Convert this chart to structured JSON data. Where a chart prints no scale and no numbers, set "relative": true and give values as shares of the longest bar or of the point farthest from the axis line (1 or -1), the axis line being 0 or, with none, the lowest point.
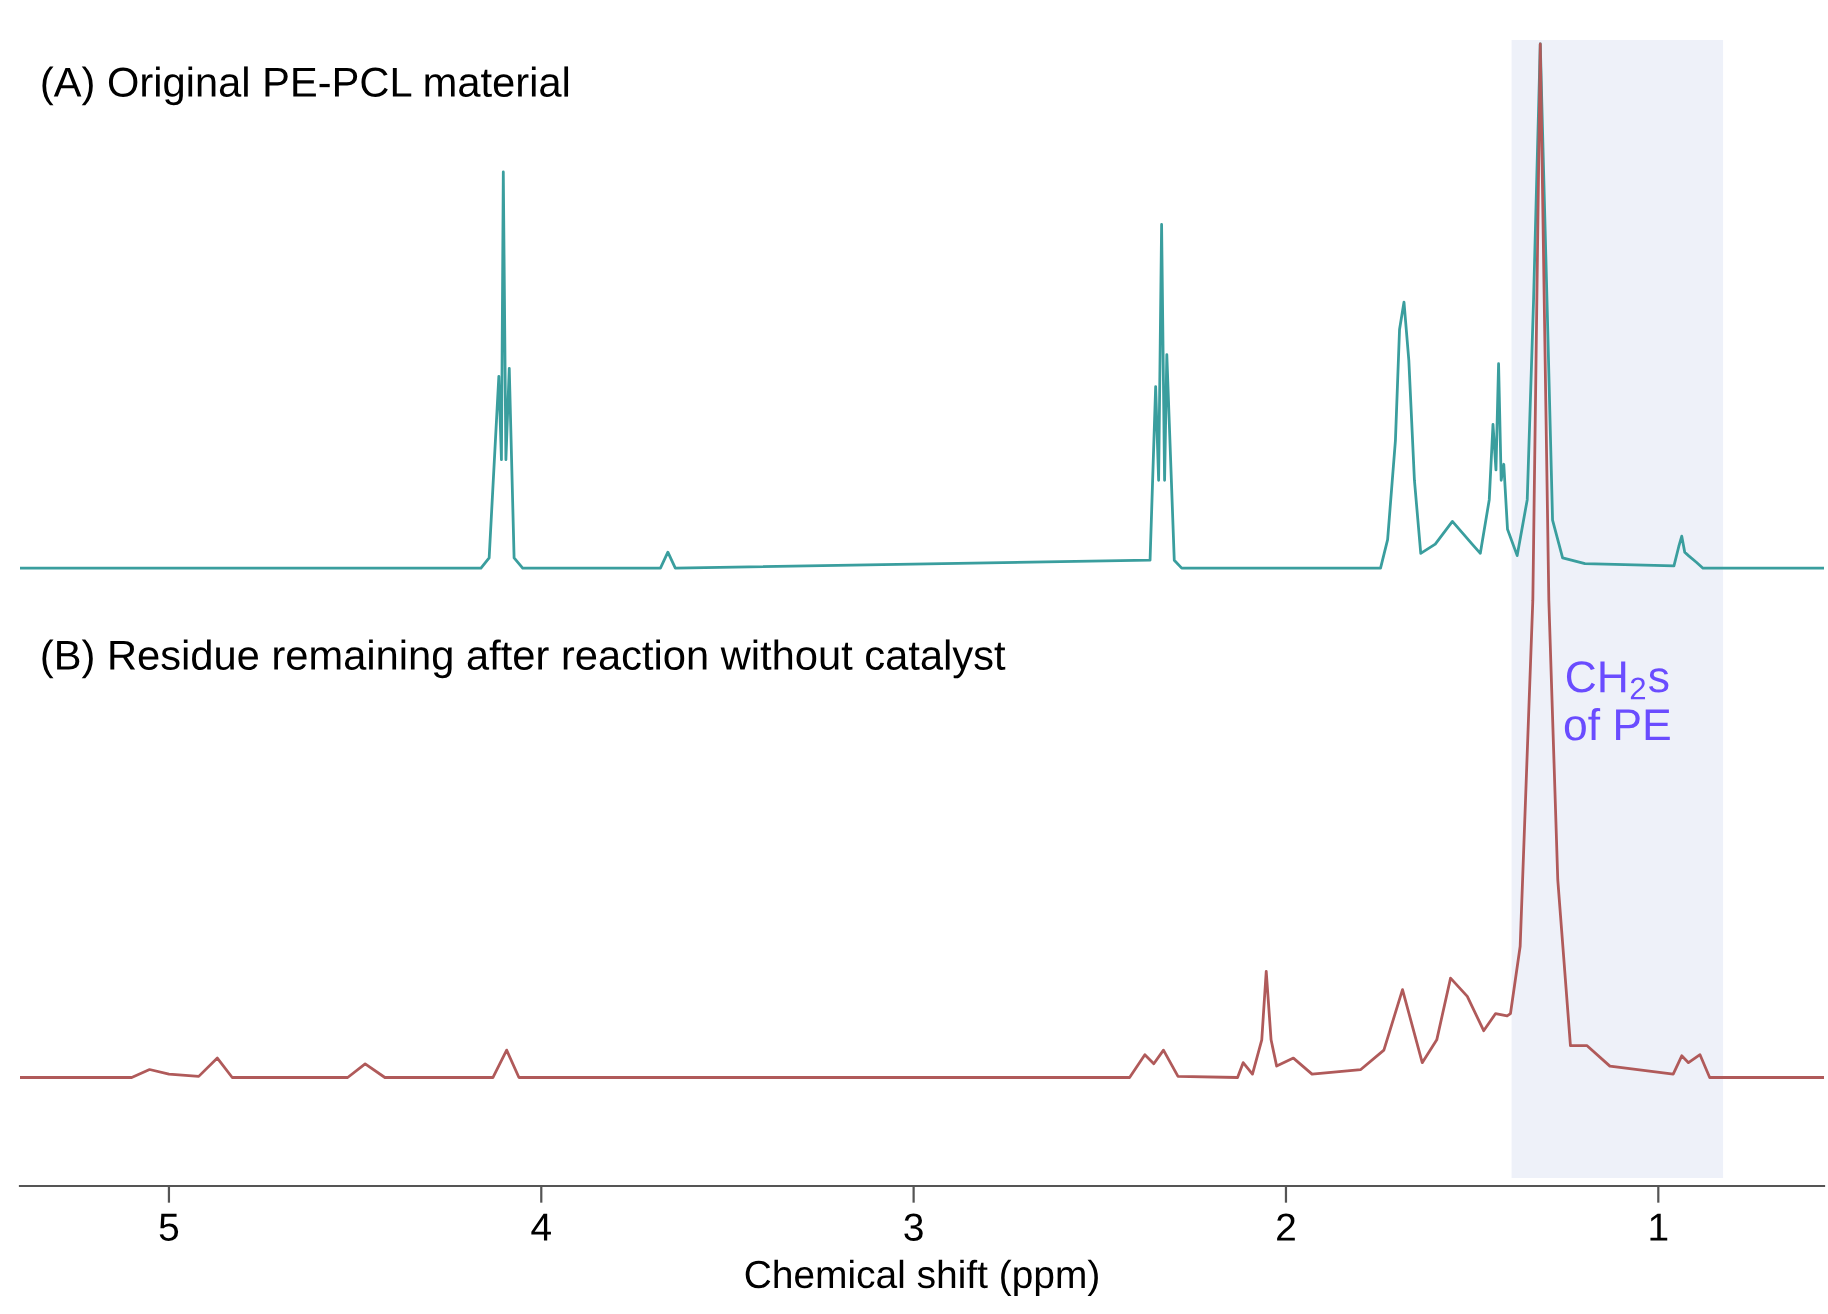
{
  "chart_data": {
    "type": "line",
    "annotations": [
      "(A) Original PE-PCL material",
      "(B) Residue remaining after reaction without catalyst"
    ],
    "xlabel": "Chemical shift (ppm)",
    "xlim": [
      5.4,
      0.555
    ],
    "xticks": [
      5,
      4,
      3,
      2,
      1
    ],
    "relative": true,
    "tick_labels": "x",
    "bands": [
      {
        "axis": "x",
        "from": 1.394,
        "to": 0.826,
        "label": "CH$_{2}$s\nof PE",
        "color": "#eef1f9"
      }
    ],
    "series": [
      {
        "color": "#3a9e9e",
        "x": [
          5.4,
          4.162,
          4.14,
          4.114,
          4.107,
          4.102,
          4.095,
          4.086,
          4.073,
          4.05,
          3.68,
          3.66,
          3.64,
          2.365,
          2.35,
          2.342,
          2.334,
          2.326,
          2.32,
          2.3,
          2.28,
          1.746,
          1.727,
          1.706,
          1.695,
          1.683,
          1.67,
          1.655,
          1.638,
          1.599,
          1.553,
          1.5,
          1.478,
          1.454,
          1.444,
          1.436,
          1.429,
          1.422,
          1.415,
          1.405,
          1.379,
          1.352,
          1.335,
          1.317,
          1.299,
          1.284,
          1.257,
          1.197,
          0.958,
          0.945,
          0.937,
          0.929,
          0.919,
          0.897,
          0.88,
          0.555
        ],
        "values": [
          0.541,
          0.541,
          0.55,
          0.709,
          0.636,
          0.888,
          0.636,
          0.716,
          0.55,
          0.541,
          0.541,
          0.555,
          0.541,
          0.548,
          0.7,
          0.618,
          0.842,
          0.618,
          0.728,
          0.548,
          0.541,
          0.541,
          0.566,
          0.653,
          0.75,
          0.774,
          0.723,
          0.618,
          0.554,
          0.562,
          0.582,
          0.562,
          0.554,
          0.601,
          0.667,
          0.627,
          0.72,
          0.618,
          0.632,
          0.575,
          0.552,
          0.601,
          0.776,
          1,
          0.776,
          0.583,
          0.55,
          0.545,
          0.543,
          0.56,
          0.569,
          0.555,
          0.552,
          0.546,
          0.541,
          0.541
        ]
      },
      {
        "color": "#b05a5a",
        "x": [
          5.4,
          5.1,
          5.052,
          5.0,
          4.92,
          4.87,
          4.83,
          4.52,
          4.473,
          4.42,
          4.13,
          4.093,
          4.06,
          2.42,
          2.379,
          2.355,
          2.329,
          2.29,
          2.13,
          2.115,
          2.09,
          2.065,
          2.053,
          2.04,
          2.025,
          1.98,
          1.93,
          1.799,
          1.737,
          1.687,
          1.634,
          1.595,
          1.558,
          1.513,
          1.469,
          1.437,
          1.406,
          1.397,
          1.371,
          1.337,
          1.317,
          1.294,
          1.27,
          1.236,
          1.192,
          1.13,
          0.96,
          0.937,
          0.919,
          0.888,
          0.862,
          0.555
        ],
        "values": [
          0.095,
          0.095,
          0.102,
          0.098,
          0.096,
          0.112,
          0.095,
          0.095,
          0.107,
          0.095,
          0.095,
          0.119,
          0.095,
          0.095,
          0.115,
          0.107,
          0.119,
          0.096,
          0.095,
          0.108,
          0.098,
          0.128,
          0.188,
          0.128,
          0.105,
          0.112,
          0.098,
          0.102,
          0.119,
          0.172,
          0.108,
          0.128,
          0.182,
          0.166,
          0.136,
          0.151,
          0.149,
          0.151,
          0.21,
          0.513,
          1,
          0.513,
          0.268,
          0.123,
          0.123,
          0.105,
          0.098,
          0.114,
          0.108,
          0.115,
          0.095,
          0.095
        ]
      }
    ]
  }
}
